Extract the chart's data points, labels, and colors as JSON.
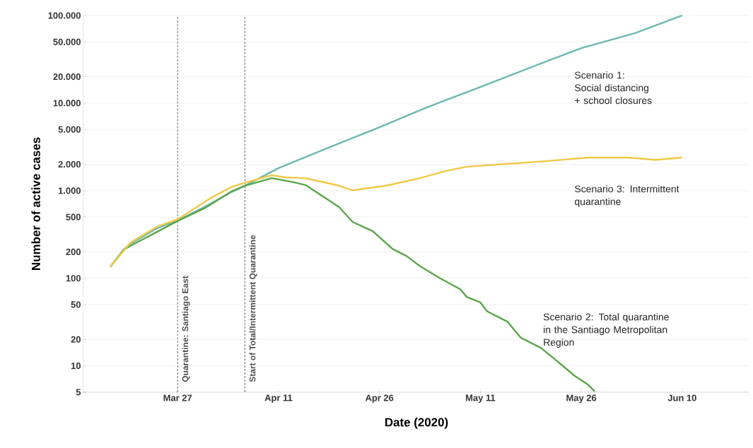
{
  "chart_data": {
    "type": "line",
    "xlabel": "Date (2020)",
    "ylabel": "Number of active cases",
    "log": "y",
    "grid": "y",
    "xlim": [
      "2020-03-13",
      "2020-06-20"
    ],
    "ylim": [
      5,
      100000
    ],
    "xticks": [
      {
        "value": "2020-03-27",
        "label": "Mar 27"
      },
      {
        "value": "2020-04-11",
        "label": "Apr 11"
      },
      {
        "value": "2020-04-26",
        "label": "Apr 26"
      },
      {
        "value": "2020-05-11",
        "label": "May 11"
      },
      {
        "value": "2020-05-26",
        "label": "May 26"
      },
      {
        "value": "2020-06-10",
        "label": "Jun 10"
      }
    ],
    "yticks": [
      5,
      10,
      20,
      50,
      100,
      200,
      500,
      {
        "value": 1000,
        "label": "1.000"
      },
      {
        "value": 2000,
        "label": "2.000"
      },
      {
        "value": 5000,
        "label": "5.000"
      },
      {
        "value": 10000,
        "label": "10.000"
      },
      {
        "value": 20000,
        "label": "20.000"
      },
      {
        "value": 50000,
        "label": "50.000"
      },
      {
        "value": 100000,
        "label": "100.000"
      }
    ],
    "ref_lines": [
      {
        "axis": "x",
        "value": "2020-03-27",
        "label": "Quarantine: Santiago East",
        "color": "#555555",
        "line_style": "dashed"
      },
      {
        "axis": "x",
        "value": "2020-04-06",
        "label": "Start of Total/Intermittent Quarantine",
        "color": "#555555",
        "line_style": "dashed"
      }
    ],
    "series": [
      {
        "name": "Scenario 1: Social distancing + school closures",
        "color": "#6cb8b0",
        "x": [
          "2020-03-17",
          "2020-03-19",
          "2020-03-20",
          "2020-03-24",
          "2020-03-27",
          "2020-03-31",
          "2020-04-04",
          "2020-04-06",
          "2020-04-11",
          "2020-04-18",
          "2020-04-26",
          "2020-05-03",
          "2020-05-11",
          "2020-05-20",
          "2020-05-26",
          "2020-06-03",
          "2020-06-10"
        ],
        "values": [
          135,
          214,
          248,
          374,
          458,
          653,
          964,
          1138,
          1810,
          3000,
          5300,
          8900,
          15300,
          28300,
          42500,
          63000,
          100000
        ]
      },
      {
        "name": "Scenario 2: Total quarantine in the Santiago Metropolitan Region",
        "color": "#5aa54a",
        "x": [
          "2020-03-17",
          "2020-03-19",
          "2020-03-20",
          "2020-03-24",
          "2020-03-27",
          "2020-03-31",
          "2020-04-04",
          "2020-04-06",
          "2020-04-10",
          "2020-04-13",
          "2020-04-15",
          "2020-04-20",
          "2020-04-22",
          "2020-04-25",
          "2020-04-28",
          "2020-04-30",
          "2020-05-02",
          "2020-05-05",
          "2020-05-08",
          "2020-05-09",
          "2020-05-11",
          "2020-05-12",
          "2020-05-15",
          "2020-05-17",
          "2020-05-20",
          "2020-05-22",
          "2020-05-25",
          "2020-05-27",
          "2020-05-28"
        ],
        "values": [
          135,
          210,
          235,
          340,
          450,
          630,
          980,
          1140,
          1390,
          1260,
          1160,
          650,
          440,
          345,
          215,
          180,
          138,
          100,
          75,
          61,
          53,
          42,
          32,
          21,
          16,
          12,
          7.7,
          6.1,
          5.1
        ]
      },
      {
        "name": "Scenario 3: Intermittent quarantine",
        "color": "#f0c846",
        "x": [
          "2020-03-17",
          "2020-03-20",
          "2020-03-24",
          "2020-03-27",
          "2020-04-01",
          "2020-04-04",
          "2020-04-06",
          "2020-04-10",
          "2020-04-12",
          "2020-04-15",
          "2020-04-20",
          "2020-04-22",
          "2020-04-27",
          "2020-05-02",
          "2020-05-06",
          "2020-05-09",
          "2020-05-15",
          "2020-05-21",
          "2020-05-27",
          "2020-06-02",
          "2020-06-06",
          "2020-06-10"
        ],
        "values": [
          135,
          255,
          390,
          470,
          830,
          1100,
          1230,
          1500,
          1420,
          1390,
          1140,
          1010,
          1140,
          1390,
          1690,
          1880,
          2020,
          2180,
          2390,
          2390,
          2250,
          2390
        ]
      }
    ]
  }
}
